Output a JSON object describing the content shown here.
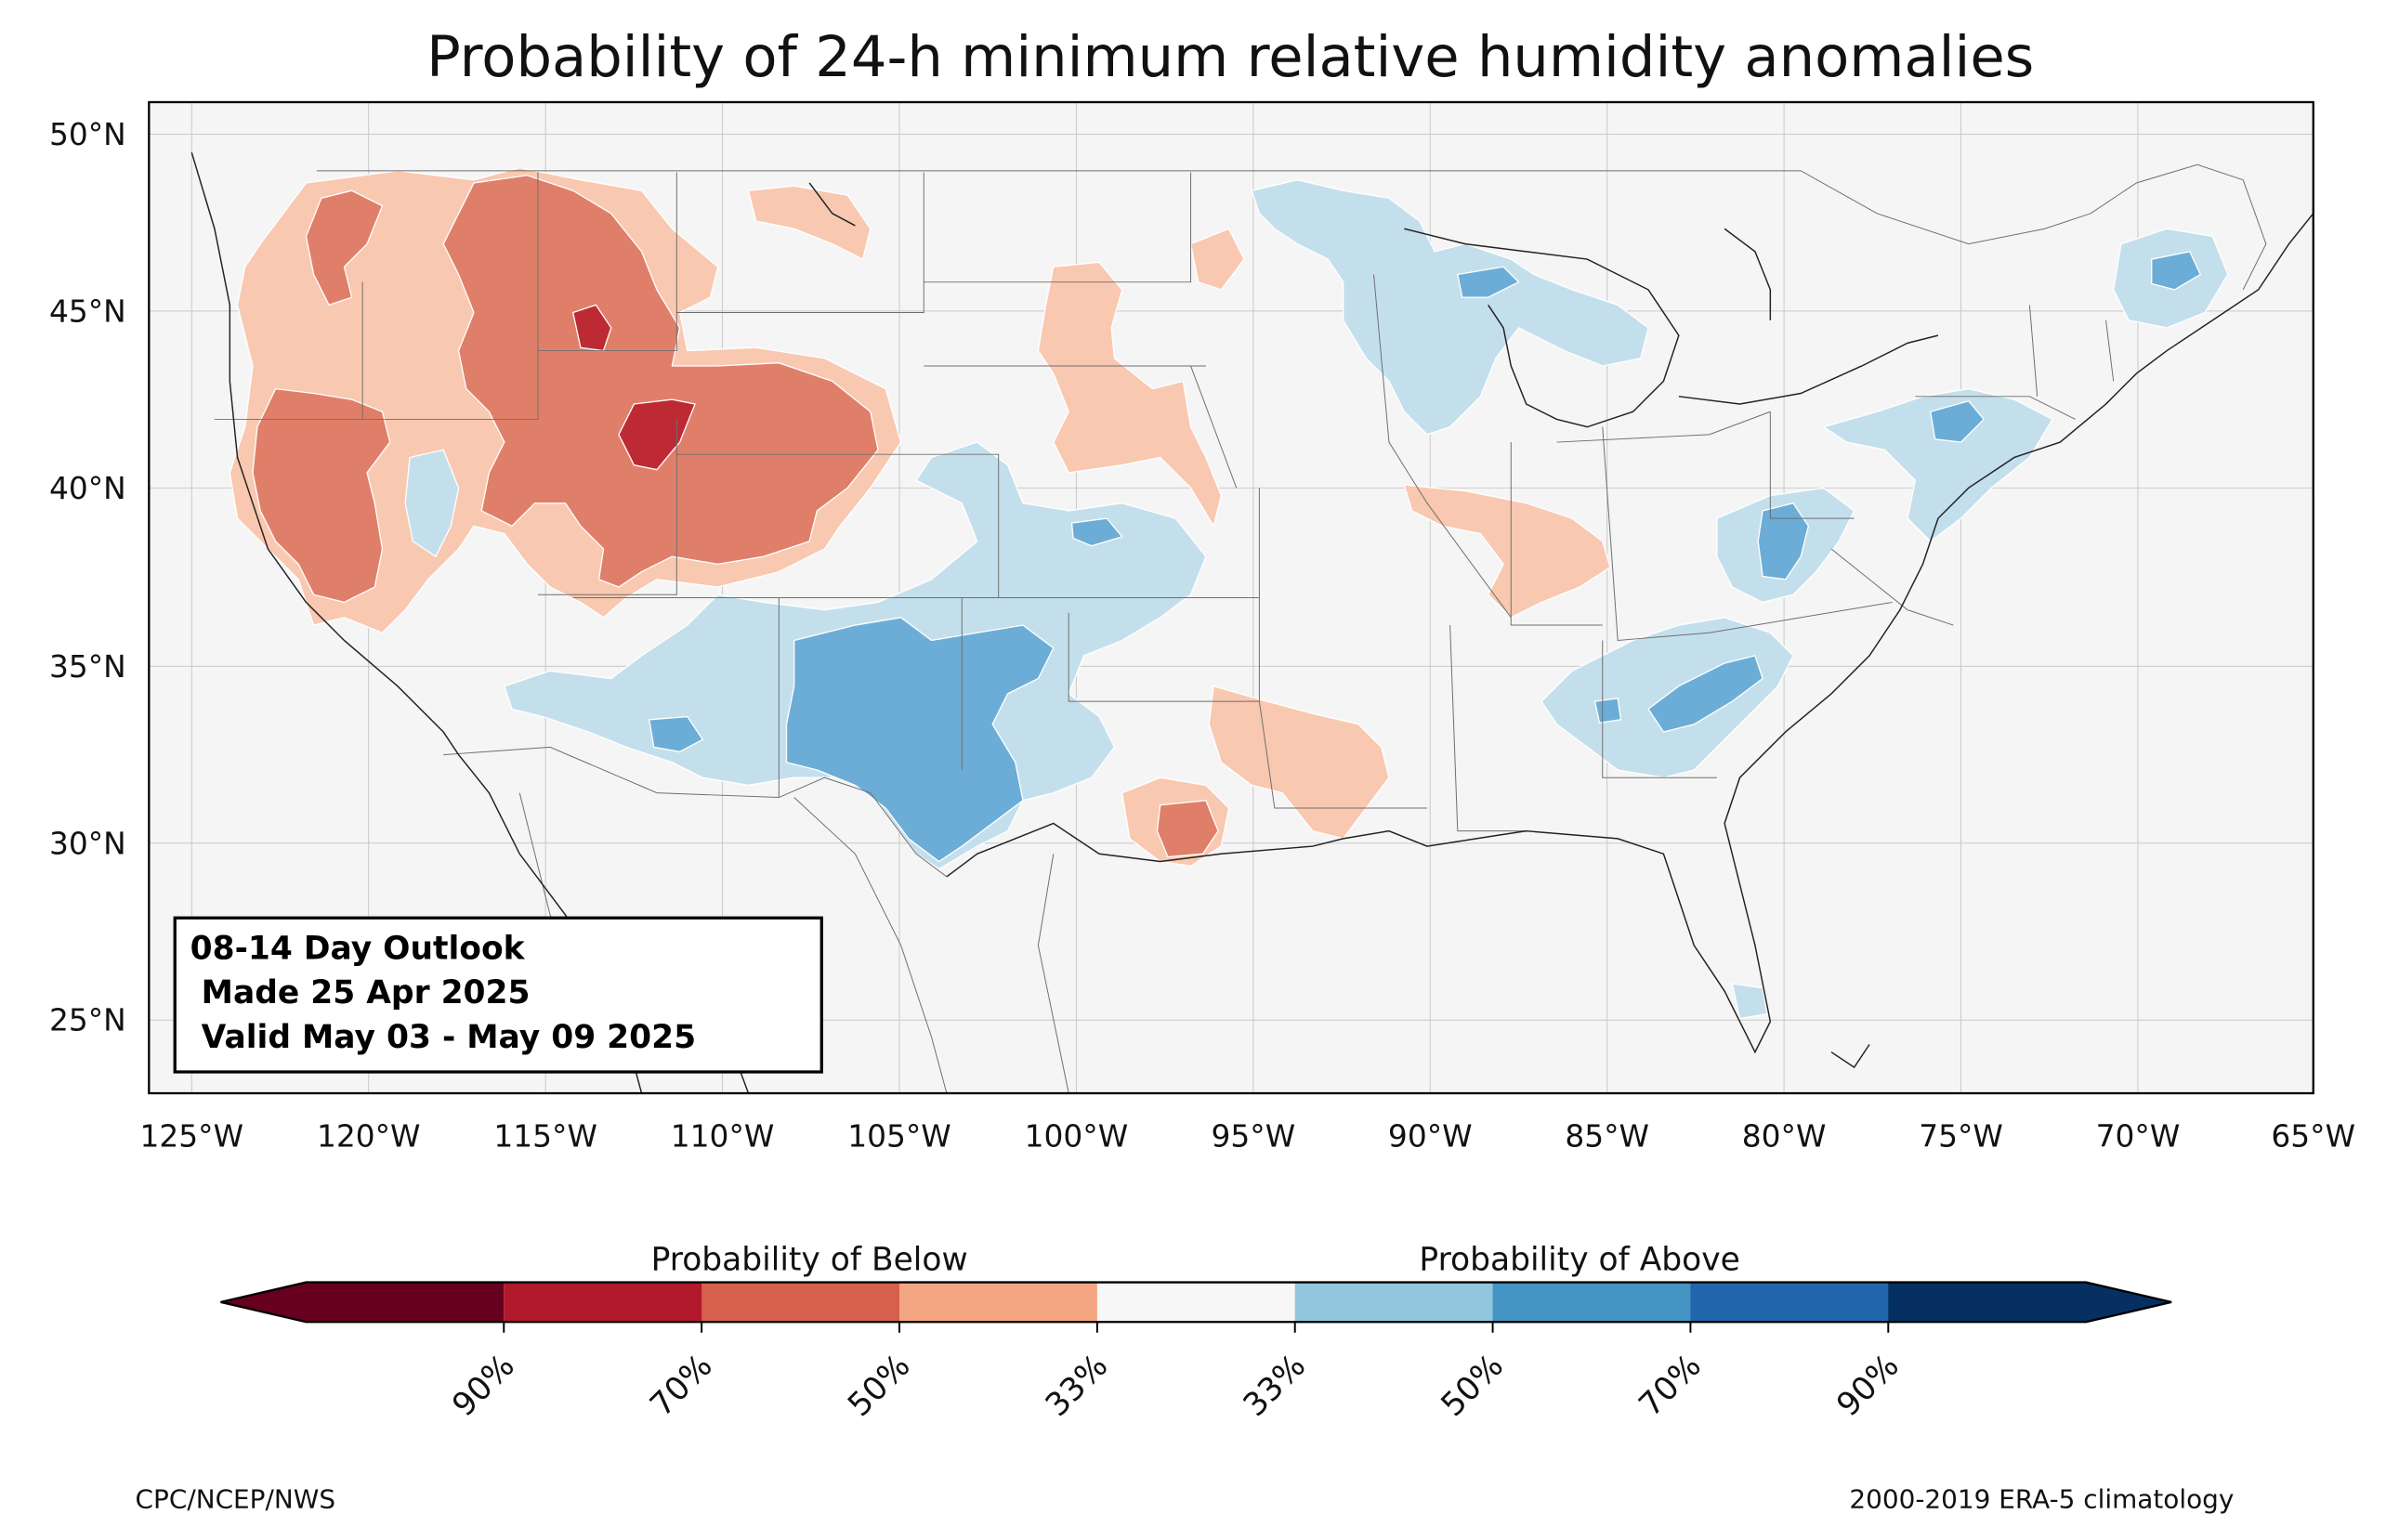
{
  "title": "Probability of 24-h minimum relative humidity anomalies",
  "map": {
    "lon_range": [
      -126,
      -65
    ],
    "lat_range": [
      23,
      51
    ],
    "lat_ticks": [
      "50°N",
      "45°N",
      "40°N",
      "35°N",
      "30°N",
      "25°N"
    ],
    "lon_ticks": [
      "125°W",
      "120°W",
      "115°W",
      "110°W",
      "105°W",
      "100°W",
      "95°W",
      "90°W",
      "85°W",
      "80°W",
      "75°W",
      "70°W",
      "65°W"
    ],
    "background_color": "#f5f5f5",
    "gridlines": true
  },
  "outlook_box": {
    "line1": "08-14 Day Outlook",
    "line2": " Made 25 Apr 2025",
    "line3": " Valid May 03 - May 09 2025"
  },
  "colorbar": {
    "below_label": "Probability of Below",
    "above_label": "Probability of Above",
    "tick_labels": [
      "90%",
      "70%",
      "50%",
      "33%",
      "33%",
      "50%",
      "70%",
      "90%"
    ],
    "colors": [
      "#67001f",
      "#b2182b",
      "#d6604d",
      "#f4a582",
      "#f7f7f7",
      "#92c5de",
      "#4393c3",
      "#2166ac",
      "#053061"
    ]
  },
  "footer": {
    "left": "CPC/NCEP/NWS",
    "right": "2000-2019 ERA-5 climatology"
  },
  "category_colors": {
    "below_33": "#f9c8b0",
    "below_50": "#e07f69",
    "below_70": "#bd2a33",
    "above_33": "#c4dfec",
    "above_50": "#6badd6",
    "above_70": "#3b7db5"
  }
}
